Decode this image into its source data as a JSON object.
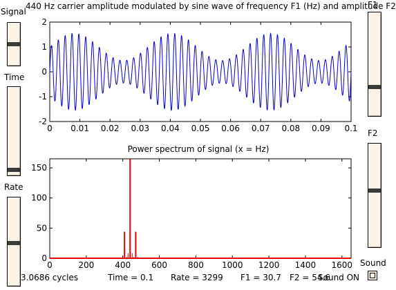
{
  "sliders": {
    "signal": {
      "label": "Signal",
      "value": 0.5
    },
    "time": {
      "label": "Time",
      "value": 0.04
    },
    "rate": {
      "label": "Rate",
      "value": 0.48
    },
    "f1": {
      "label": "F1",
      "value": 0.27
    },
    "f2": {
      "label": "F2",
      "value": 0.55
    }
  },
  "top_title": "440 Hz carrier amplitude modulated by sine wave of frequency F1 (Hz) and amplitude F2",
  "bottom_title": "Power spectrum of signal (x = Hz)",
  "status": {
    "cycles": "3.0686 cycles",
    "time": "Time = 0.1",
    "rate": "Rate = 3299",
    "f1": "F1 = 30.7",
    "f2": "F2 = 54.6",
    "sound_on": "Sound ON",
    "sound_label": "Sound"
  },
  "colors": {
    "signal_line": "#0000cc",
    "spectrum_line": "#ee0000"
  },
  "chart_data": [
    {
      "type": "line",
      "title": "440 Hz carrier amplitude modulated by sine wave of frequency F1 (Hz) and amplitude F2",
      "xlabel": "",
      "ylabel": "",
      "xlim": [
        0,
        0.1
      ],
      "ylim": [
        -2,
        2
      ],
      "xticks": [
        0,
        0.01,
        0.02,
        0.03,
        0.04,
        0.05,
        0.06,
        0.07,
        0.08,
        0.09,
        0.1
      ],
      "xtick_labels": [
        "0",
        "0.01",
        "0.02",
        "0.03",
        "0.04",
        "0.05",
        "0.06",
        "0.07",
        "0.08",
        "0.09",
        "0.1"
      ],
      "yticks": [
        -2,
        -1,
        0,
        1,
        2
      ],
      "ytick_labels": [
        "-2",
        "-1",
        "0",
        "1",
        "2"
      ],
      "carrier_hz": 440,
      "modulation_hz": 30.7,
      "modulation_depth": 0.546,
      "grid": false
    },
    {
      "type": "line",
      "title": "Power spectrum of signal (x = Hz)",
      "xlabel": "",
      "ylabel": "",
      "xlim": [
        0,
        1650
      ],
      "ylim": [
        0,
        165
      ],
      "xticks": [
        0,
        200,
        400,
        600,
        800,
        1000,
        1200,
        1400,
        1600
      ],
      "xtick_labels": [
        "0",
        "200",
        "400",
        "600",
        "800",
        "1000",
        "1200",
        "1400",
        "1600"
      ],
      "yticks": [
        0,
        50,
        100,
        150
      ],
      "ytick_labels": [
        "0",
        "50",
        "100",
        "150"
      ],
      "peaks": [
        {
          "x": 409.3,
          "y": 44
        },
        {
          "x": 440,
          "y": 165
        },
        {
          "x": 470.7,
          "y": 44
        }
      ],
      "grid": false
    }
  ]
}
